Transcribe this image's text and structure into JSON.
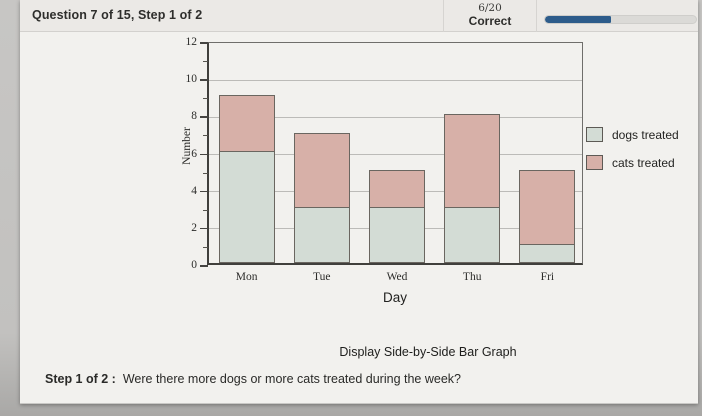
{
  "header": {
    "question_title": "Question 7 of 15, Step 1 of 2",
    "score": "6/20",
    "score_label": "Correct",
    "progress_percent": 44,
    "progress_color": "#2d5c8b"
  },
  "chart_data": {
    "type": "bar",
    "stacked": true,
    "categories": [
      "Mon",
      "Tue",
      "Wed",
      "Thu",
      "Fri"
    ],
    "series": [
      {
        "name": "dogs treated",
        "color": "#d3dcd5",
        "values": [
          6,
          3,
          3,
          3,
          1
        ]
      },
      {
        "name": "cats treated",
        "color": "#d7b0a8",
        "values": [
          3,
          4,
          2,
          5,
          4
        ]
      }
    ],
    "totals": [
      9,
      7,
      5,
      8,
      5
    ],
    "xlabel": "Day",
    "ylabel": "Number",
    "ylim": [
      0,
      12
    ],
    "y_ticks": [
      0,
      2,
      4,
      6,
      8,
      10,
      12
    ],
    "grid": "horizontal",
    "legend_position": "right"
  },
  "footer": {
    "display_link": "Display Side-by-Side Bar Graph",
    "step_label": "Step 1 of 2 :",
    "question": "Were there more dogs or more cats treated during the week?"
  }
}
